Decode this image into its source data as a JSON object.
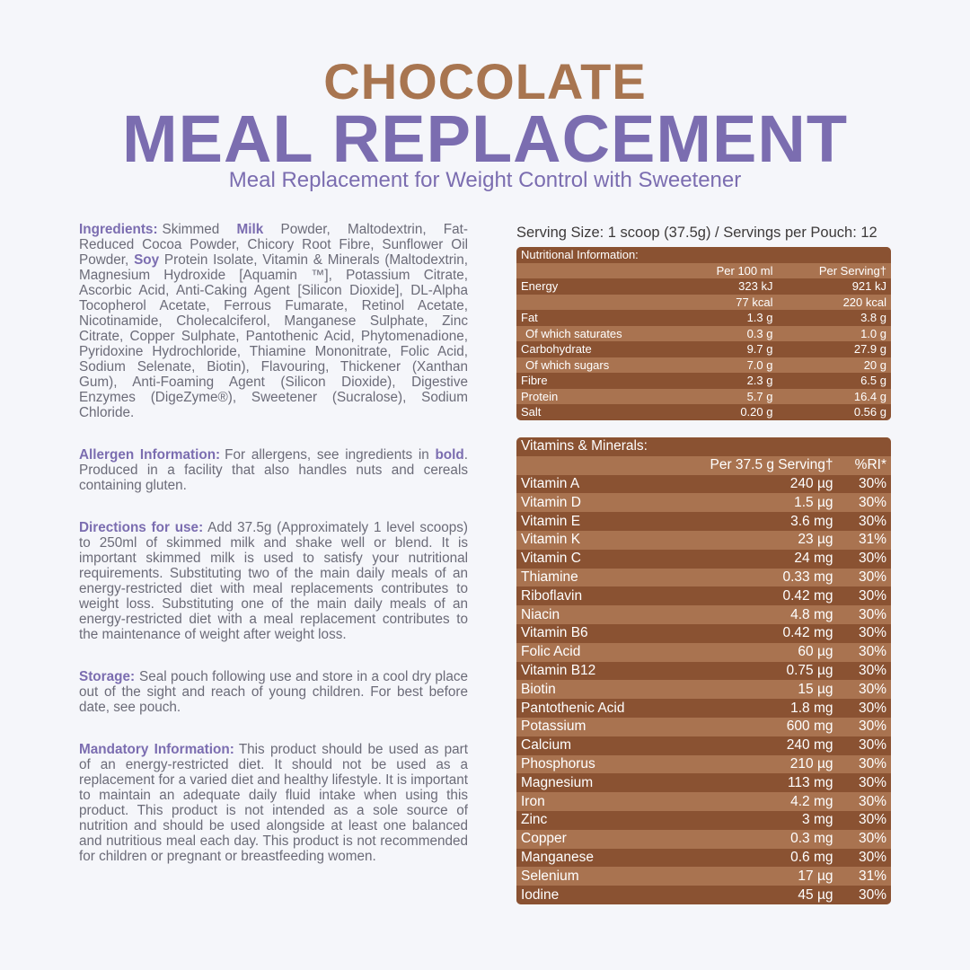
{
  "header": {
    "title": "CHOCOLATE",
    "title2": "MEAL REPLACEMENT",
    "subtitle": "Meal Replacement for Weight Control with Sweetener"
  },
  "sections": [
    {
      "label": "Ingredients:",
      "parts": [
        {
          "text": "Skimmed ",
          "bold": false
        },
        {
          "text": "Milk",
          "bold": true
        },
        {
          "text": " Powder, Maltodextrin, Fat-Reduced Cocoa Powder, Chicory Root Fibre, Sunflower Oil Powder, ",
          "bold": false
        },
        {
          "text": "Soy",
          "bold": true
        },
        {
          "text": " Protein Isolate, Vitamin & Minerals (Maltodextrin, Magnesium Hydroxide [Aquamin ™], Potassium Citrate, Ascorbic Acid, Anti-Caking Agent [Silicon Dioxide], DL-Alpha Tocopherol Acetate, Ferrous Fumarate, Retinol Acetate, Nicotinamide, Cholecalciferol, Manganese Sulphate, Zinc Citrate, Copper Sulphate, Pantothenic Acid, Phytomenadione, Pyridoxine Hydrochloride, Thiamine Mononitrate, Folic Acid, Sodium Selenate, Biotin), Flavouring, Thickener (Xanthan Gum), Anti-Foaming Agent (Silicon Dioxide), Digestive Enzymes (DigeZyme®), Sweetener (Sucralose), Sodium Chloride.",
          "bold": false
        }
      ]
    },
    {
      "label": "Allergen Information:",
      "parts": [
        {
          "text": "For allergens, see ingredients in ",
          "bold": false
        },
        {
          "text": "bold",
          "bold": true
        },
        {
          "text": ". Produced in a facility that also handles nuts and cereals containing gluten.",
          "bold": false
        }
      ]
    },
    {
      "label": "Directions for use:",
      "parts": [
        {
          "text": "Add 37.5g (Approximately 1 level scoops) to 250ml of skimmed milk and shake well or blend. It is important skimmed milk is used to satisfy your nutritional requirements. Substituting two of the main daily meals of an energy-restricted diet with meal replacements contributes to weight loss. Substituting one of the main daily meals of an energy-restricted diet with a meal replacement contributes to the maintenance of weight after weight loss.",
          "bold": false
        }
      ]
    },
    {
      "label": "Storage:",
      "parts": [
        {
          "text": "Seal pouch following use and store in a cool dry place out of the sight and reach of young children. For best before date, see pouch.",
          "bold": false
        }
      ]
    },
    {
      "label": "Mandatory Information:",
      "parts": [
        {
          "text": "This product should be used as part of an energy-restricted diet. It should not be used as a replacement for a varied diet and healthy lifestyle. It is important to maintain an adequate daily fluid intake when using this product. This product is not intended as a sole source of nutrition and should be used alongside at least one balanced and nutritious meal each day. This product is not recommended for children or pregnant or breastfeeding women.",
          "bold": false
        }
      ]
    }
  ],
  "serving": "Serving Size: 1 scoop (37.5g) / Servings per Pouch: 12",
  "nutrition": {
    "title": "Nutritional Information:",
    "columns": [
      "Per 100 ml",
      "Per Serving†"
    ],
    "rows": [
      {
        "name": "Energy",
        "cells": [
          "323 kJ",
          "921 kJ"
        ],
        "indent": false
      },
      {
        "name": null,
        "cells": [
          "77 kcal",
          "220 kcal"
        ],
        "indent": false
      },
      {
        "name": "Fat",
        "cells": [
          "1.3 g",
          "3.8 g"
        ],
        "indent": false
      },
      {
        "name": "Of which saturates",
        "cells": [
          "0.3 g",
          "1.0 g"
        ],
        "indent": true
      },
      {
        "name": "Carbohydrate",
        "cells": [
          "9.7 g",
          "27.9 g"
        ],
        "indent": false
      },
      {
        "name": "Of which sugars",
        "cells": [
          "7.0 g",
          "20 g"
        ],
        "indent": true
      },
      {
        "name": "Fibre",
        "cells": [
          "2.3 g",
          "6.5 g"
        ],
        "indent": false
      },
      {
        "name": "Protein",
        "cells": [
          "5.7 g",
          "16.4 g"
        ],
        "indent": false
      },
      {
        "name": "Salt",
        "cells": [
          "0.20 g",
          "0.56 g"
        ],
        "indent": false
      }
    ]
  },
  "vitamins": {
    "title": "Vitamins & Minerals:",
    "columns": [
      "Per 37.5 g Serving†",
      "%RI*"
    ],
    "rows": [
      [
        "Vitamin A",
        "240 µg",
        "30%"
      ],
      [
        "Vitamin D",
        "1.5 µg",
        "30%"
      ],
      [
        "Vitamin E",
        "3.6 mg",
        "30%"
      ],
      [
        "Vitamin K",
        "23 µg",
        "31%"
      ],
      [
        "Vitamin C",
        "24 mg",
        "30%"
      ],
      [
        "Thiamine",
        "0.33 mg",
        "30%"
      ],
      [
        "Riboflavin",
        "0.42 mg",
        "30%"
      ],
      [
        "Niacin",
        "4.8 mg",
        "30%"
      ],
      [
        "Vitamin B6",
        "0.42 mg",
        "30%"
      ],
      [
        "Folic Acid",
        "60 µg",
        "30%"
      ],
      [
        "Vitamin B12",
        "0.75 µg",
        "30%"
      ],
      [
        "Biotin",
        "15 µg",
        "30%"
      ],
      [
        "Pantothenic Acid",
        "1.8 mg",
        "30%"
      ],
      [
        "Potassium",
        "600 mg",
        "30%"
      ],
      [
        "Calcium",
        "240 mg",
        "30%"
      ],
      [
        "Phosphorus",
        "210 µg",
        "30%"
      ],
      [
        "Magnesium",
        "113 mg",
        "30%"
      ],
      [
        "Iron",
        "4.2 mg",
        "30%"
      ],
      [
        "Zinc",
        "3 mg",
        "30%"
      ],
      [
        "Copper",
        "0.3 mg",
        "30%"
      ],
      [
        "Manganese",
        "0.6 mg",
        "30%"
      ],
      [
        "Selenium",
        "17 µg",
        "31%"
      ],
      [
        "Iodine",
        "45 µg",
        "30%"
      ]
    ]
  }
}
